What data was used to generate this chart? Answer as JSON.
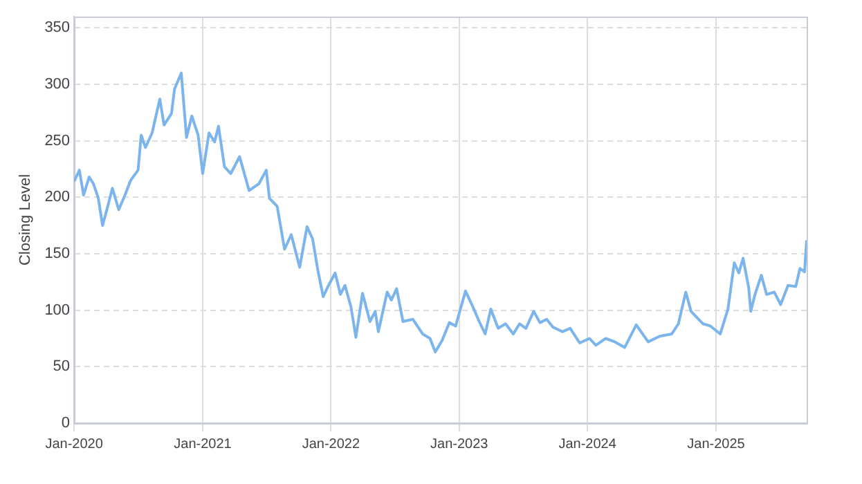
{
  "chart_data": {
    "type": "line",
    "ylabel": "Closing Level",
    "xlim": [
      "2020-01-01",
      "2025-09-16"
    ],
    "xticks": [
      {
        "value": "2020-01-01",
        "label": "Jan-2020"
      },
      {
        "value": "2021-01-01",
        "label": "Jan-2021"
      },
      {
        "value": "2022-01-01",
        "label": "Jan-2022"
      },
      {
        "value": "2023-01-01",
        "label": "Jan-2023"
      },
      {
        "value": "2024-01-01",
        "label": "Jan-2024"
      },
      {
        "value": "2025-01-01",
        "label": "Jan-2025"
      }
    ],
    "ylim": [
      0,
      360
    ],
    "yticks": [
      0,
      50,
      100,
      150,
      200,
      250,
      300,
      350
    ],
    "grid": true,
    "marker": "none",
    "line_style": "solid",
    "legend": false,
    "x": [
      "2020-01-01",
      "2020-01-16",
      "2020-01-28",
      "2020-02-13",
      "2020-02-25",
      "2020-03-10",
      "2020-03-22",
      "2020-04-04",
      "2020-04-19",
      "2020-05-07",
      "2020-05-25",
      "2020-06-10",
      "2020-07-01",
      "2020-07-10",
      "2020-07-22",
      "2020-08-10",
      "2020-09-01",
      "2020-09-13",
      "2020-10-04",
      "2020-10-13",
      "2020-11-01",
      "2020-11-16",
      "2020-12-01",
      "2020-12-19",
      "2021-01-01",
      "2021-01-19",
      "2021-02-04",
      "2021-02-15",
      "2021-03-04",
      "2021-03-22",
      "2021-04-16",
      "2021-05-13",
      "2021-06-10",
      "2021-07-01",
      "2021-07-10",
      "2021-08-01",
      "2021-08-22",
      "2021-09-10",
      "2021-10-04",
      "2021-10-25",
      "2021-11-10",
      "2021-11-25",
      "2021-12-10",
      "2021-12-22",
      "2022-01-13",
      "2022-01-28",
      "2022-02-10",
      "2022-02-27",
      "2022-03-13",
      "2022-04-01",
      "2022-04-22",
      "2022-05-07",
      "2022-05-16",
      "2022-06-10",
      "2022-06-22",
      "2022-07-07",
      "2022-07-25",
      "2022-08-22",
      "2022-09-19",
      "2022-10-10",
      "2022-10-25",
      "2022-11-13",
      "2022-12-04",
      "2022-12-22",
      "2023-01-19",
      "2023-02-09",
      "2023-02-27",
      "2023-03-16",
      "2023-04-01",
      "2023-04-22",
      "2023-05-13",
      "2023-06-04",
      "2023-06-22",
      "2023-07-10",
      "2023-08-01",
      "2023-08-19",
      "2023-09-07",
      "2023-09-25",
      "2023-10-22",
      "2023-11-13",
      "2023-12-10",
      "2024-01-07",
      "2024-01-25",
      "2024-02-22",
      "2024-03-19",
      "2024-04-16",
      "2024-05-19",
      "2024-06-22",
      "2024-07-25",
      "2024-08-28",
      "2024-09-16",
      "2024-10-07",
      "2024-10-22",
      "2024-11-25",
      "2024-12-16",
      "2025-01-13",
      "2025-02-04",
      "2025-02-22",
      "2025-03-07",
      "2025-03-19",
      "2025-04-04",
      "2025-04-10",
      "2025-04-22",
      "2025-05-10",
      "2025-05-25",
      "2025-06-16",
      "2025-07-04",
      "2025-07-25",
      "2025-08-16",
      "2025-08-28",
      "2025-09-10",
      "2025-09-16"
    ],
    "series": [
      {
        "color": "#7cb5ec",
        "values": [
          214,
          224,
          202,
          218,
          212,
          199,
          175,
          190,
          208,
          189,
          202,
          215,
          224,
          255,
          244,
          257,
          287,
          264,
          274,
          296,
          310,
          253,
          272,
          255,
          221,
          257,
          249,
          263,
          227,
          221,
          236,
          206,
          212,
          224,
          199,
          192,
          154,
          167,
          138,
          174,
          163,
          135,
          112,
          120,
          133,
          114,
          122,
          103,
          76,
          115,
          90,
          99,
          81,
          116,
          109,
          119,
          90,
          92,
          79,
          75,
          63,
          73,
          89,
          86,
          117,
          103,
          90,
          79,
          101,
          84,
          88,
          79,
          88,
          84,
          99,
          89,
          92,
          85,
          81,
          84,
          71,
          75,
          69,
          75,
          72,
          67,
          87,
          72,
          77,
          79,
          88,
          116,
          99,
          88,
          86,
          79,
          101,
          142,
          133,
          146,
          120,
          99,
          114,
          131,
          114,
          116,
          105,
          122,
          121,
          137,
          134,
          162
        ]
      }
    ]
  }
}
